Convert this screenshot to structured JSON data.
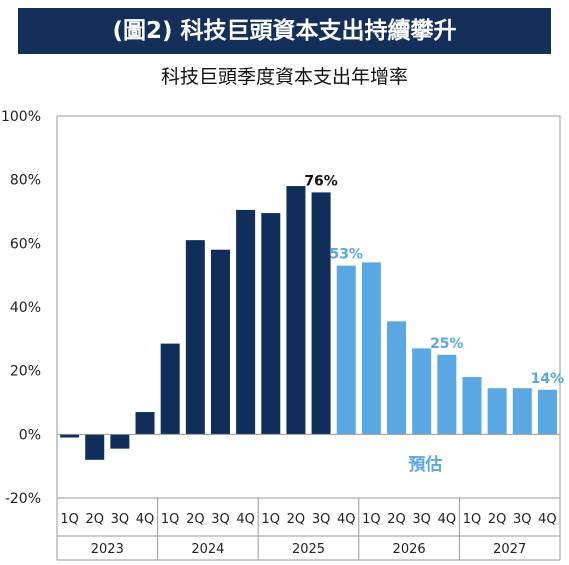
{
  "banner": {
    "title": "(圖2) 科技巨頭資本支出持續攀升"
  },
  "chart_data": {
    "type": "bar",
    "title": "科技巨頭季度資本支出年增率",
    "xlabel": "",
    "ylabel": "",
    "ylim": [
      -20,
      100
    ],
    "yticks": [
      "100%",
      "80%",
      "60%",
      "40%",
      "20%",
      "0%",
      "-20%"
    ],
    "ytick_values": [
      100,
      80,
      60,
      40,
      20,
      0,
      -20
    ],
    "quarter_labels": [
      "1Q",
      "2Q",
      "3Q",
      "4Q"
    ],
    "years": [
      "2023",
      "2024",
      "2025",
      "2026",
      "2027"
    ],
    "values": [
      -1,
      -8,
      -4.5,
      7,
      28.5,
      61,
      58,
      70.5,
      69.5,
      78,
      76,
      53,
      54,
      35.5,
      27,
      25,
      18,
      14.5,
      14.5,
      14
    ],
    "forecast_start_index": 11,
    "forecast_label": "預估",
    "data_labels": [
      {
        "index": 10,
        "text": "76%"
      },
      {
        "index": 11,
        "text": "53%"
      },
      {
        "index": 15,
        "text": "25%"
      },
      {
        "index": 19,
        "text": "14%"
      }
    ],
    "colors": {
      "actual": "#0f2f5a",
      "forecast": "#5aa8e3",
      "banner": "#14305a"
    },
    "grid": false
  }
}
